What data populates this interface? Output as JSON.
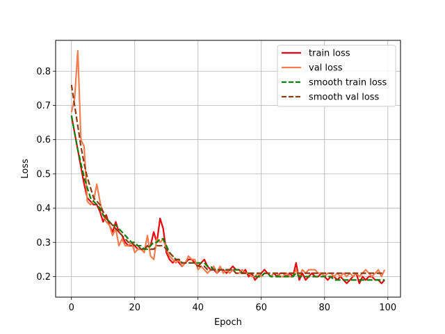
{
  "chart_data": {
    "type": "line",
    "xlabel": "Epoch",
    "ylabel": "Loss",
    "xlim": [
      -5,
      104
    ],
    "ylim": [
      0.14,
      0.89
    ],
    "xticks": [
      0,
      20,
      40,
      60,
      80,
      100
    ],
    "yticks": [
      0.2,
      0.3,
      0.4,
      0.5,
      0.6,
      0.7,
      0.8
    ],
    "grid": true,
    "legend_position": "top-right",
    "x": [
      0,
      1,
      2,
      3,
      4,
      5,
      6,
      7,
      8,
      9,
      10,
      11,
      12,
      13,
      14,
      15,
      16,
      17,
      18,
      19,
      20,
      21,
      22,
      23,
      24,
      25,
      26,
      27,
      28,
      29,
      30,
      31,
      32,
      33,
      34,
      35,
      36,
      37,
      38,
      39,
      40,
      41,
      42,
      43,
      44,
      45,
      46,
      47,
      48,
      49,
      50,
      51,
      52,
      53,
      54,
      55,
      56,
      57,
      58,
      59,
      60,
      61,
      62,
      63,
      64,
      65,
      66,
      67,
      68,
      69,
      70,
      71,
      72,
      73,
      74,
      75,
      76,
      77,
      78,
      79,
      80,
      81,
      82,
      83,
      84,
      85,
      86,
      87,
      88,
      89,
      90,
      91,
      92,
      93,
      94,
      95,
      96,
      97,
      98,
      99
    ],
    "series": [
      {
        "name": "train loss",
        "color": "#e8000b",
        "dash": "solid",
        "values": [
          0.67,
          0.62,
          0.57,
          0.52,
          0.47,
          0.43,
          0.42,
          0.41,
          0.41,
          0.39,
          0.36,
          0.38,
          0.35,
          0.33,
          0.36,
          0.33,
          0.32,
          0.3,
          0.29,
          0.29,
          0.29,
          0.28,
          0.28,
          0.28,
          0.29,
          0.29,
          0.33,
          0.3,
          0.37,
          0.34,
          0.27,
          0.25,
          0.24,
          0.25,
          0.24,
          0.23,
          0.24,
          0.25,
          0.25,
          0.24,
          0.23,
          0.24,
          0.25,
          0.23,
          0.22,
          0.22,
          0.21,
          0.22,
          0.22,
          0.21,
          0.22,
          0.23,
          0.22,
          0.22,
          0.21,
          0.22,
          0.2,
          0.21,
          0.19,
          0.2,
          0.21,
          0.22,
          0.21,
          0.2,
          0.21,
          0.2,
          0.21,
          0.21,
          0.2,
          0.21,
          0.2,
          0.24,
          0.19,
          0.21,
          0.19,
          0.2,
          0.21,
          0.2,
          0.2,
          0.21,
          0.2,
          0.19,
          0.2,
          0.2,
          0.19,
          0.2,
          0.19,
          0.18,
          0.19,
          0.2,
          0.21,
          0.18,
          0.2,
          0.19,
          0.2,
          0.2,
          0.19,
          0.19,
          0.18,
          0.19
        ]
      },
      {
        "name": "val loss",
        "color": "#f47c4e",
        "dash": "solid",
        "values": [
          0.68,
          0.72,
          0.86,
          0.6,
          0.58,
          0.42,
          0.41,
          0.42,
          0.47,
          0.42,
          0.38,
          0.36,
          0.35,
          0.32,
          0.34,
          0.29,
          0.31,
          0.29,
          0.29,
          0.3,
          0.27,
          0.28,
          0.28,
          0.27,
          0.32,
          0.26,
          0.25,
          0.31,
          0.3,
          0.31,
          0.28,
          0.26,
          0.25,
          0.24,
          0.25,
          0.23,
          0.24,
          0.26,
          0.25,
          0.25,
          0.22,
          0.23,
          0.22,
          0.21,
          0.22,
          0.23,
          0.21,
          0.23,
          0.21,
          0.22,
          0.21,
          0.22,
          0.21,
          0.21,
          0.22,
          0.21,
          0.21,
          0.2,
          0.2,
          0.21,
          0.2,
          0.21,
          0.21,
          0.2,
          0.21,
          0.21,
          0.2,
          0.2,
          0.21,
          0.2,
          0.2,
          0.22,
          0.2,
          0.22,
          0.21,
          0.22,
          0.22,
          0.22,
          0.21,
          0.21,
          0.2,
          0.21,
          0.21,
          0.2,
          0.21,
          0.2,
          0.21,
          0.2,
          0.21,
          0.2,
          0.21,
          0.2,
          0.21,
          0.22,
          0.21,
          0.2,
          0.21,
          0.22,
          0.2,
          0.22
        ]
      },
      {
        "name": "smooth train loss",
        "color": "#007f00",
        "dash": "dashed",
        "values": [
          0.67,
          0.62,
          0.57,
          0.53,
          0.49,
          0.46,
          0.43,
          0.42,
          0.41,
          0.4,
          0.38,
          0.37,
          0.36,
          0.35,
          0.35,
          0.34,
          0.33,
          0.32,
          0.31,
          0.3,
          0.3,
          0.29,
          0.29,
          0.28,
          0.28,
          0.29,
          0.3,
          0.3,
          0.31,
          0.31,
          0.29,
          0.27,
          0.26,
          0.25,
          0.25,
          0.24,
          0.24,
          0.24,
          0.24,
          0.24,
          0.24,
          0.24,
          0.24,
          0.23,
          0.23,
          0.22,
          0.22,
          0.22,
          0.22,
          0.22,
          0.22,
          0.22,
          0.22,
          0.22,
          0.21,
          0.21,
          0.21,
          0.21,
          0.2,
          0.2,
          0.2,
          0.21,
          0.21,
          0.2,
          0.2,
          0.2,
          0.2,
          0.2,
          0.2,
          0.2,
          0.2,
          0.21,
          0.2,
          0.2,
          0.2,
          0.2,
          0.2,
          0.2,
          0.2,
          0.2,
          0.2,
          0.2,
          0.2,
          0.19,
          0.19,
          0.19,
          0.19,
          0.19,
          0.19,
          0.19,
          0.19,
          0.19,
          0.19,
          0.19,
          0.19,
          0.19,
          0.19,
          0.19,
          0.19,
          0.19
        ]
      },
      {
        "name": "smooth val loss",
        "color": "#8b3a0f",
        "dash": "dashed",
        "values": [
          0.76,
          0.7,
          0.64,
          0.58,
          0.53,
          0.49,
          0.46,
          0.43,
          0.42,
          0.41,
          0.39,
          0.37,
          0.36,
          0.35,
          0.34,
          0.33,
          0.32,
          0.31,
          0.3,
          0.3,
          0.29,
          0.29,
          0.28,
          0.28,
          0.29,
          0.28,
          0.28,
          0.29,
          0.29,
          0.29,
          0.28,
          0.27,
          0.26,
          0.25,
          0.25,
          0.24,
          0.24,
          0.24,
          0.24,
          0.24,
          0.23,
          0.23,
          0.23,
          0.22,
          0.22,
          0.22,
          0.22,
          0.22,
          0.22,
          0.22,
          0.22,
          0.22,
          0.21,
          0.21,
          0.21,
          0.21,
          0.21,
          0.21,
          0.21,
          0.21,
          0.21,
          0.21,
          0.21,
          0.21,
          0.21,
          0.21,
          0.21,
          0.21,
          0.21,
          0.21,
          0.21,
          0.21,
          0.21,
          0.21,
          0.21,
          0.21,
          0.21,
          0.21,
          0.21,
          0.21,
          0.21,
          0.21,
          0.21,
          0.21,
          0.21,
          0.21,
          0.21,
          0.21,
          0.21,
          0.21,
          0.21,
          0.21,
          0.21,
          0.21,
          0.21,
          0.21,
          0.21,
          0.21,
          0.21,
          0.21
        ]
      }
    ]
  }
}
